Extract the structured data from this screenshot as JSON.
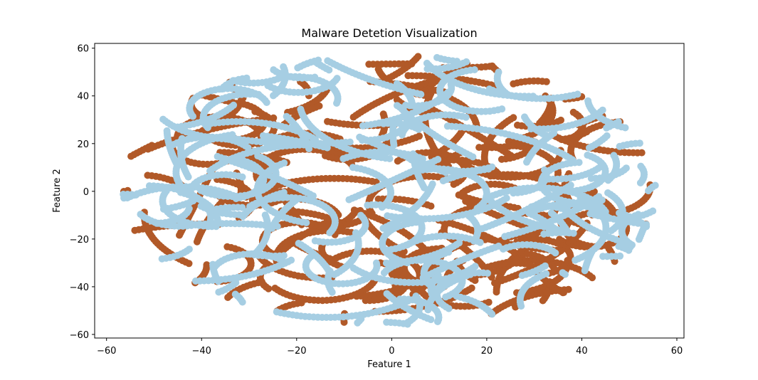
{
  "chart_data": {
    "type": "scatter",
    "title": "Malware Detetion Visualization",
    "xlabel": "Feature 1",
    "ylabel": "Feature 2",
    "xlim": [
      -62.5,
      61.5
    ],
    "ylim": [
      -61.5,
      62
    ],
    "xticks": [
      -60,
      -40,
      -20,
      0,
      20,
      40,
      60
    ],
    "yticks": [
      -60,
      -40,
      -20,
      0,
      20,
      40,
      60
    ],
    "grid": false,
    "legend": "none",
    "series": [
      {
        "color": "#b15928",
        "marker_radius": 5
      },
      {
        "color": "#a6cee3",
        "marker_radius": 5
      }
    ],
    "point_cloud": {
      "shape": "ellipse",
      "center": [
        0,
        0
      ],
      "x_extent": [
        -57,
        56
      ],
      "y_extent": [
        -56,
        57
      ],
      "points_per_series": 2600,
      "structure": "curved streak trails concentrated near the ring edge and interior"
    }
  }
}
